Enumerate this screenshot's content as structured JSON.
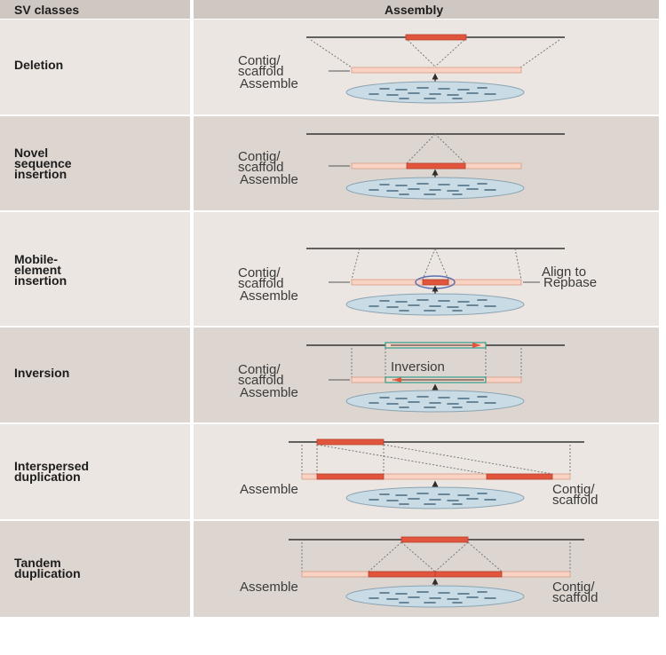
{
  "header": {
    "sv_classes": "SV classes",
    "assembly": "Assembly"
  },
  "labels": {
    "contig": "Contig/",
    "scaffold": "scaffold",
    "assemble": "Assemble",
    "align_to": "Align to",
    "repbase": "Repbase",
    "inversion": "Inversion"
  },
  "rows": [
    {
      "lines": [
        "Deletion"
      ]
    },
    {
      "lines": [
        "Novel",
        "sequence",
        "insertion"
      ]
    },
    {
      "lines": [
        "Mobile-",
        "element",
        "insertion"
      ]
    },
    {
      "lines": [
        "Inversion"
      ]
    },
    {
      "lines": [
        "Interspersed",
        "duplication"
      ]
    },
    {
      "lines": [
        "Tandem",
        "duplication"
      ]
    }
  ],
  "colors": {
    "row_light": "#ebe6e2",
    "row_dark": "#ddd6d0",
    "header": "#cfc8c2",
    "sv_red": "#e2553d",
    "contig_fill": "#f8d2c3",
    "ellipse_fill": "#c9dbe5",
    "reference_line": "#333333"
  }
}
